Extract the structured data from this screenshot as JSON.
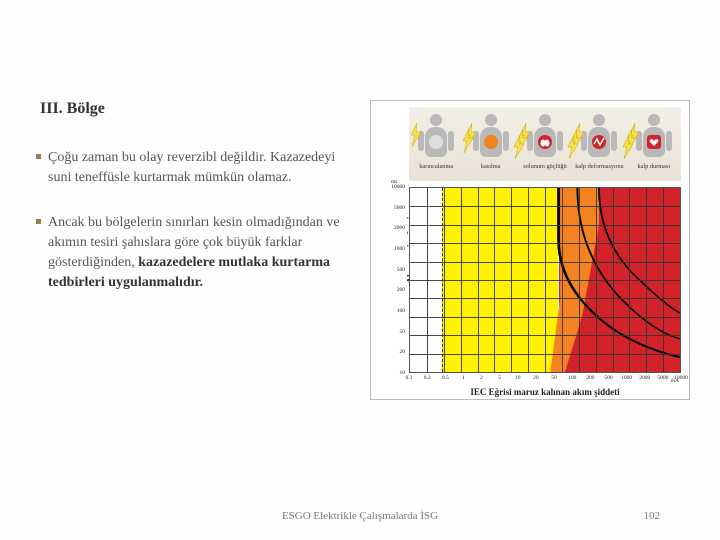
{
  "heading": "III. Bölge",
  "paragraphs": [
    {
      "text": "Çoğu zaman bu olay reverzibl değildir. Kazazedeyi suni teneffüsle kurtarmak mümkün olamaz.",
      "bold_tail": ""
    },
    {
      "text": "Ancak bu bölgelerin sınırları kesin olmadığından ve akımın tesiri şahıslara göre çok büyük farklar gösterdiğinden, ",
      "bold_tail": "kazazedelere mutlaka kurtarma tedbirleri uygulanmalıdır."
    }
  ],
  "footer": "ESGO Elektrikle Çalışmalarda İSG",
  "page_number": "102",
  "chart": {
    "figures": [
      {
        "label": "karıncalanma",
        "bolts": 1,
        "badge_color": "#dedede"
      },
      {
        "label": "kasılma",
        "bolts": 2,
        "badge_color": "#f58220"
      },
      {
        "label": "solunum güçlüğü",
        "bolts": 3,
        "badge_color": "#d2232a",
        "badge_deco": "lungs"
      },
      {
        "label": "kalp deformasyonu",
        "bolts": 3,
        "badge_color": "#d2232a",
        "badge_deco": "zig"
      },
      {
        "label": "kalp durması",
        "bolts": 3,
        "badge_color": "#d2232a",
        "badge_deco": "heart"
      }
    ],
    "zones": {
      "white": "#fdfdfd",
      "yellow": "#fff200",
      "orange": "#f58220",
      "red": "#d2232a"
    },
    "x_label": "IEC Eğrisi maruz kalınan akım şiddeti",
    "y_label": "Akım geçiş süresi",
    "y_unit": "ms",
    "x_unit": "mA",
    "y_ticks": [
      "10000",
      "5000",
      "2000",
      "1000",
      "500",
      "200",
      "100",
      "50",
      "20",
      "10"
    ],
    "x_ticks": [
      "0.1",
      "0.2",
      "0.5",
      "1",
      "2",
      "5",
      "10",
      "20",
      "50",
      "100",
      "200",
      "500",
      "1000",
      "2000",
      "5000",
      "10000"
    ],
    "grid_color": "#333333",
    "border_color": "#bcbcbc",
    "curve_color": "#000000"
  }
}
